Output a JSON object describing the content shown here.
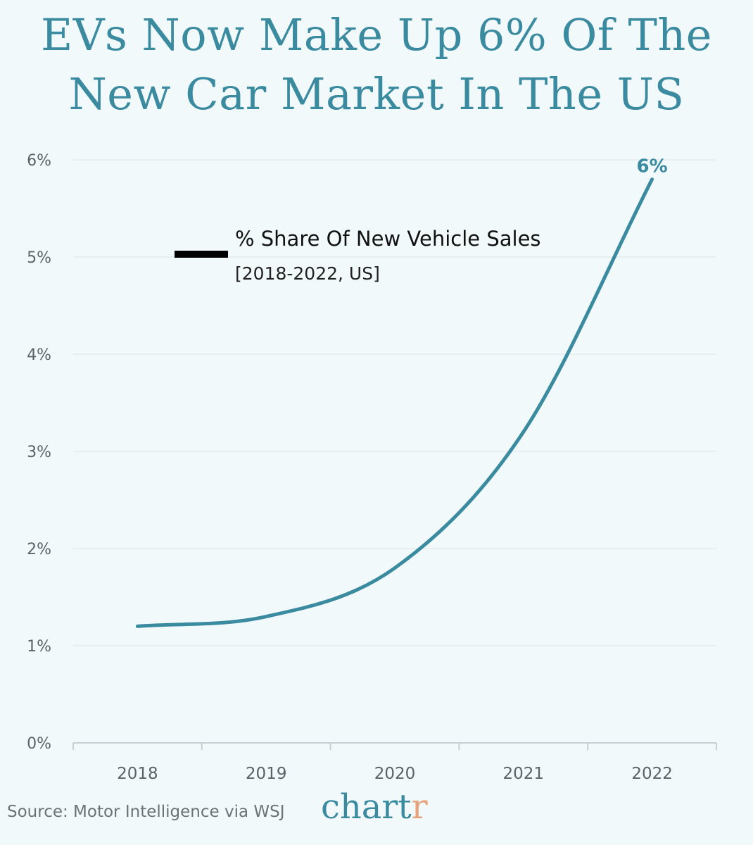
{
  "title": {
    "line1": "EVs Now Make Up 6% Of The",
    "line2": "New Car Market In The US"
  },
  "legend": {
    "label": "% Share Of New Vehicle Sales",
    "sublabel": "[2018-2022, US]"
  },
  "source": "Source: Motor Intelligence via WSJ",
  "brand": {
    "main": "chart",
    "accent": "r"
  },
  "colors": {
    "line": "#3a8aa0",
    "title": "#3a8aa0",
    "grid": "#e4ecee",
    "axis": "#c8cfd2",
    "brand_accent": "#e8a27c"
  },
  "chart_data": {
    "type": "line",
    "title": "EVs Now Make Up 6% Of The New Car Market In The US",
    "xlabel": "",
    "ylabel": "",
    "categories": [
      "2018",
      "2019",
      "2020",
      "2021",
      "2022"
    ],
    "series": [
      {
        "name": "% Share Of New Vehicle Sales",
        "values": [
          1.2,
          1.3,
          1.8,
          3.2,
          5.8
        ]
      }
    ],
    "yticks": [
      "0%",
      "1%",
      "2%",
      "3%",
      "4%",
      "5%",
      "6%"
    ],
    "ylim": [
      0,
      6
    ],
    "grid": true,
    "annotations": [
      {
        "category": "2022",
        "text": "6%"
      }
    ]
  }
}
